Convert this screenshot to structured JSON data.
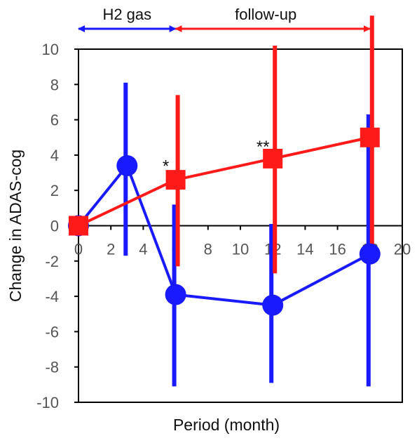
{
  "colors": {
    "series_blue": "#1a1aff",
    "series_red": "#ff1a1a",
    "axis": "#000000"
  },
  "chart_data": {
    "type": "line",
    "xlabel": "Period (month)",
    "ylabel": "Change in ADAS-cog",
    "xlim": [
      0,
      20
    ],
    "ylim": [
      -10,
      10
    ],
    "x_ticks": [
      "0",
      "2",
      "4",
      "6",
      "8",
      "10",
      "12",
      "14",
      "16",
      "18",
      "20"
    ],
    "y_ticks": [
      "10",
      "8",
      "6",
      "4",
      "2",
      "0",
      "-2",
      "-4",
      "-6",
      "-8",
      "-10"
    ],
    "grid": false,
    "series": [
      {
        "color": "#1a1aff",
        "marker": "circle",
        "points": [
          {
            "x": 0,
            "y": 0,
            "err_low": null,
            "err_high": null
          },
          {
            "x": 3,
            "y": 3.4,
            "err_low": -1.7,
            "err_high": 8.1
          },
          {
            "x": 6,
            "y": -3.9,
            "err_low": -9.1,
            "err_high": 1.2
          },
          {
            "x": 12,
            "y": -4.5,
            "err_low": -8.9,
            "err_high": 0.1
          },
          {
            "x": 18,
            "y": -1.6,
            "err_low": -9.1,
            "err_high": 6.3
          }
        ]
      },
      {
        "color": "#ff1a1a",
        "marker": "square",
        "points": [
          {
            "x": 0,
            "y": 0,
            "err_low": null,
            "err_high": null
          },
          {
            "x": 6,
            "y": 2.6,
            "err_low": -2.3,
            "err_high": 7.4
          },
          {
            "x": 12,
            "y": 3.8,
            "err_low": -2.7,
            "err_high": 10.2
          },
          {
            "x": 18,
            "y": 5.0,
            "err_low": -2.0,
            "err_high": 11.9
          }
        ]
      }
    ],
    "annotations": [
      {
        "text": "*",
        "x": 6,
        "y": 3.3
      },
      {
        "text": "**",
        "x": 12,
        "y": 4.4
      }
    ],
    "phases": [
      {
        "label": "H2 gas",
        "x_start": 0,
        "x_end": 6,
        "color": "#1a1aff"
      },
      {
        "label": "follow-up",
        "x_start": 6,
        "x_end": 18,
        "color": "#ff1a1a"
      }
    ]
  }
}
